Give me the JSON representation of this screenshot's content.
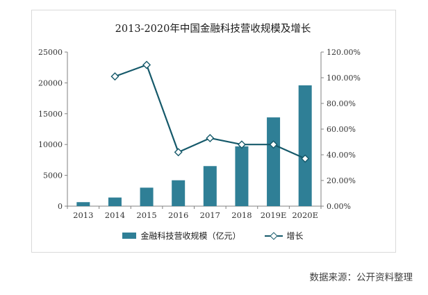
{
  "title": "2013-2020年中国金融科技营收规模及增长",
  "source": "数据来源：公开资料整理",
  "legend": {
    "bars": "金融科技营收规模（亿元）",
    "line": "增长"
  },
  "colors": {
    "bar": "#2f7f96",
    "line": "#15596a",
    "axis": "#808080",
    "text": "#333333"
  },
  "chart_data": {
    "type": "bar",
    "title": "2013-2020年中国金融科技营收规模及增长",
    "categories": [
      "2013",
      "2014",
      "2015",
      "2016",
      "2017",
      "2018",
      "2019E",
      "2020E"
    ],
    "series": [
      {
        "name": "金融科技营收规模（亿元）",
        "type": "bar",
        "axis": "left",
        "values": [
          650,
          1400,
          3000,
          4200,
          6500,
          9700,
          14400,
          19600
        ]
      },
      {
        "name": "增长",
        "type": "line",
        "axis": "right",
        "values_percent": [
          null,
          101,
          110,
          42,
          53,
          48,
          48,
          37
        ]
      }
    ],
    "left_axis": {
      "min": 0,
      "max": 25000,
      "step": 5000
    },
    "right_axis": {
      "min": 0,
      "max": 120,
      "step": 20,
      "format": "percent_2dp"
    },
    "grid": false,
    "legend_position": "bottom"
  }
}
